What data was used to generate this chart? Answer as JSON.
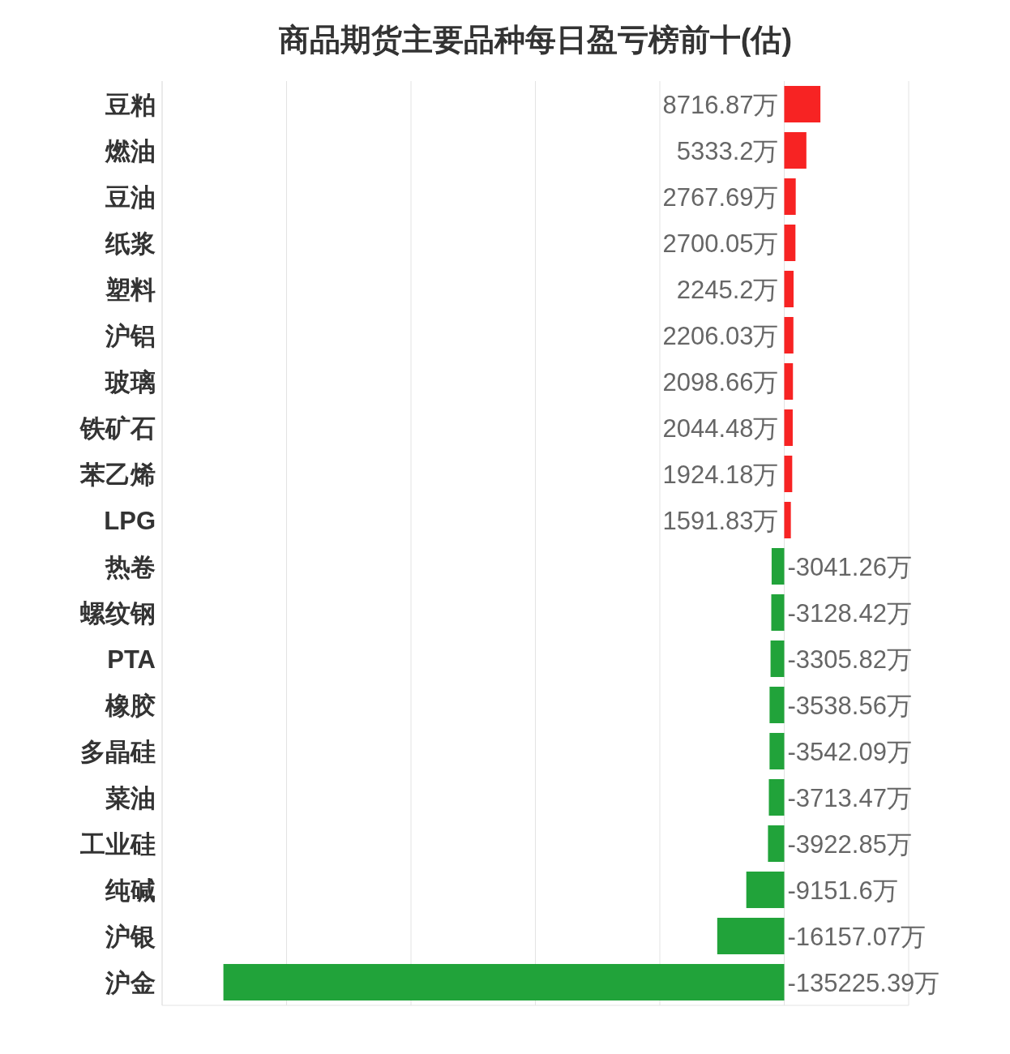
{
  "chart_data": {
    "type": "bar",
    "orientation": "horizontal",
    "title": "商品期货主要品种每日盈亏榜前十(估)",
    "categories": [
      "豆粕",
      "燃油",
      "豆油",
      "纸浆",
      "塑料",
      "沪铝",
      "玻璃",
      "铁矿石",
      "苯乙烯",
      "LPG",
      "热卷",
      "螺纹钢",
      "PTA",
      "橡胶",
      "多晶硅",
      "菜油",
      "工业硅",
      "纯碱",
      "沪银",
      "沪金"
    ],
    "values": [
      8716.87,
      5333.2,
      2767.69,
      2700.05,
      2245.2,
      2206.03,
      2098.66,
      2044.48,
      1924.18,
      1591.83,
      -3041.26,
      -3128.42,
      -3305.82,
      -3538.56,
      -3542.09,
      -3713.47,
      -3922.85,
      -9151.6,
      -16157.07,
      -135225.39
    ],
    "colors": [
      "#f72323",
      "#f72323",
      "#f72323",
      "#f72323",
      "#f72323",
      "#f72323",
      "#f72323",
      "#f72323",
      "#f72323",
      "#f72323",
      "#21a33a",
      "#21a33a",
      "#21a33a",
      "#21a33a",
      "#21a33a",
      "#21a33a",
      "#21a33a",
      "#21a33a",
      "#21a33a",
      "#21a33a"
    ],
    "value_labels": [
      "8716.87万",
      "5333.2万",
      "2767.69万",
      "2700.05万",
      "2245.2万",
      "2206.03万",
      "2098.66万",
      "2044.48万",
      "1924.18万",
      "1591.83万",
      "-3041.26万",
      "-3128.42万",
      "-3305.82万",
      "-3538.56万",
      "-3542.09万",
      "-3713.47万",
      "-3922.85万",
      "-9151.6万",
      "-16157.07万",
      "-135225.39万"
    ],
    "xlim": [
      -150000,
      30000
    ],
    "xticks": [
      {
        "value": -150000,
        "label": null
      },
      {
        "value": -120000,
        "label": null
      },
      {
        "value": -90000,
        "label": null
      },
      {
        "value": -60000,
        "label": null
      },
      {
        "value": -30000,
        "label": null
      },
      {
        "value": 0,
        "label": null
      },
      {
        "value": 30000,
        "label": null
      }
    ],
    "grid": "x",
    "tick_labels": "y"
  }
}
